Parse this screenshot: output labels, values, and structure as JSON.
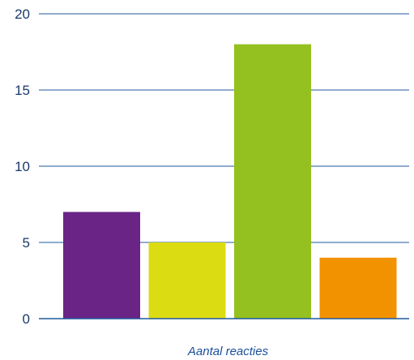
{
  "chart_data": {
    "type": "bar",
    "categories": [
      "",
      "",
      "",
      ""
    ],
    "values": [
      7,
      5,
      18,
      4
    ],
    "colors": [
      "#6a2486",
      "#dcdc12",
      "#94c11f",
      "#f39200"
    ],
    "title": "",
    "xlabel": "Aantal reacties",
    "ylabel": "",
    "ylim": [
      0,
      20
    ],
    "yticks": [
      0,
      5,
      10,
      15,
      20
    ],
    "grid": true,
    "grid_color": "#1f5a9e",
    "legend": "none"
  }
}
